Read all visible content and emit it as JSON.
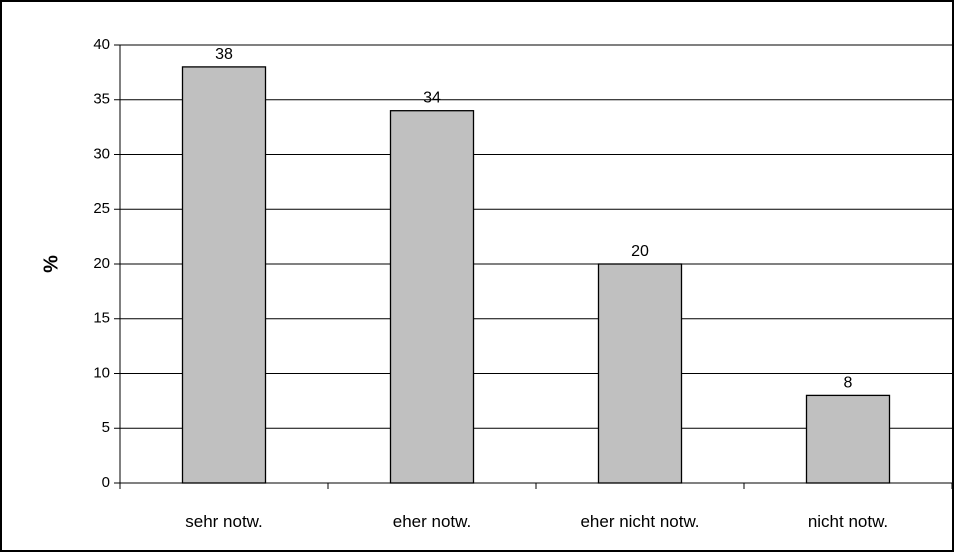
{
  "chart_data": {
    "type": "bar",
    "categories": [
      "sehr notw.",
      "eher notw.",
      "eher nicht notw.",
      "nicht notw."
    ],
    "values": [
      38,
      34,
      20,
      8
    ],
    "data_labels": [
      "38",
      "34",
      "20",
      "8"
    ],
    "title": "",
    "xlabel": "",
    "ylabel": "%",
    "ylim": [
      0,
      40
    ],
    "yticks": [
      0,
      5,
      10,
      15,
      20,
      25,
      30,
      35,
      40
    ],
    "grid": true,
    "legend": "none",
    "bar_color": "#c0c0c0",
    "bar_edge_color": "#000000"
  }
}
